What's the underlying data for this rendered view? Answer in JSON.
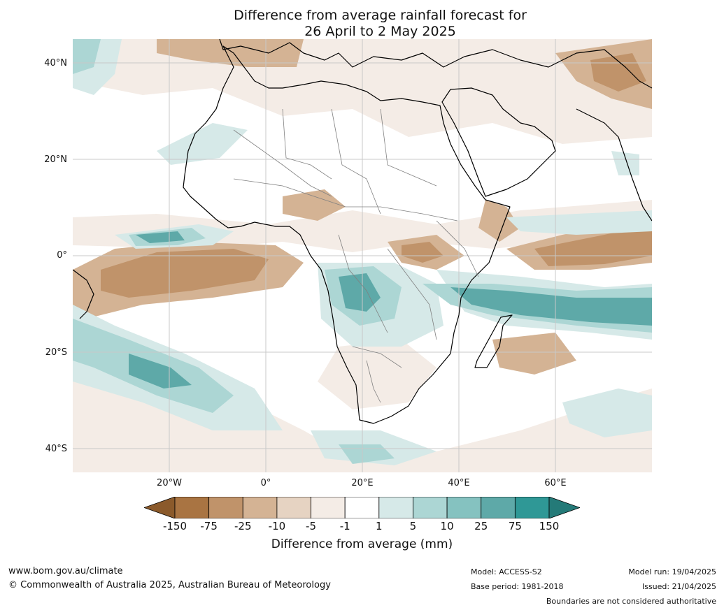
{
  "title": {
    "line1": "Difference from average rainfall forecast for",
    "line2": "26 April to 2 May 2025"
  },
  "map": {
    "region": "Africa",
    "lat_labels": [
      "40°N",
      "20°N",
      "0°",
      "20°S",
      "40°S"
    ],
    "lon_labels": [
      "20°W",
      "0°",
      "20°E",
      "40°E",
      "60°E"
    ]
  },
  "legend": {
    "caption": "Difference from average (mm)",
    "ticks": [
      "-150",
      "-75",
      "-25",
      "-10",
      "-5",
      "-1",
      "1",
      "5",
      "10",
      "25",
      "75",
      "150"
    ],
    "colors": [
      "#8b5a2b",
      "#a97442",
      "#c0936a",
      "#d4b394",
      "#e6d3c2",
      "#f4ece6",
      "#ffffff",
      "#d6e9e8",
      "#acd6d4",
      "#85c2c0",
      "#5ea9a8",
      "#2f9896",
      "#247a78"
    ]
  },
  "footer": {
    "website": "www.bom.gov.au/climate",
    "copyright": "© Commonwealth of Australia 2025, Australian Bureau of Meteorology",
    "model": "Model: ACCESS-S2",
    "base_period": "Base period: 1981-2018",
    "model_run": "Model run: 19/04/2025",
    "issued": "Issued: 21/04/2025",
    "disclaimer": "Boundaries are not considered authoritative"
  }
}
